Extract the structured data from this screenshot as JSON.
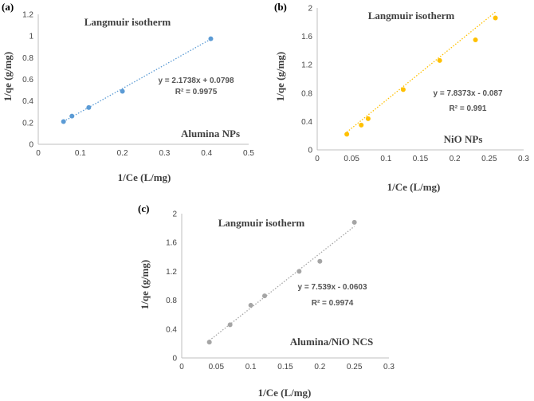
{
  "chart_data": [
    {
      "type": "scatter",
      "panel_label": "(a)",
      "title": "Langmuir isotherm",
      "annotation": "Alumina NPs",
      "xlabel": "1/Ce (L/mg)",
      "ylabel": "1/qe  (g/mg)",
      "xlim": [
        0,
        0.5
      ],
      "ylim": [
        0,
        1.2
      ],
      "xticks": [
        "0",
        "0.1",
        "0.2",
        "0.3",
        "0.4",
        "0.5"
      ],
      "yticks": [
        "0",
        "0.2",
        "0.4",
        "0.6",
        "0.8",
        "1",
        "1.2"
      ],
      "grid": false,
      "color": "#5b9bd5",
      "points": [
        {
          "x": 0.06,
          "y": 0.21
        },
        {
          "x": 0.08,
          "y": 0.26
        },
        {
          "x": 0.12,
          "y": 0.34
        },
        {
          "x": 0.2,
          "y": 0.49
        },
        {
          "x": 0.41,
          "y": 0.975
        }
      ],
      "trendline": {
        "slope": 2.1738,
        "intercept": 0.0798,
        "x_range": [
          0.06,
          0.41
        ],
        "style": "dotted"
      },
      "equation": "y = 2.1738x + 0.0798",
      "r2": "R² = 0.9975"
    },
    {
      "type": "scatter",
      "panel_label": "(b)",
      "title": "Langmuir isotherm",
      "annotation": "NiO NPs",
      "xlabel": "1/Ce (L/mg)",
      "ylabel": "1/qe  (g/mg)",
      "xlim": [
        0,
        0.3
      ],
      "ylim": [
        0,
        2
      ],
      "xticks": [
        "0",
        "0.05",
        "0.1",
        "0.15",
        "0.2",
        "0.25",
        "0.3"
      ],
      "yticks": [
        "0",
        "0.4",
        "0.8",
        "1.2",
        "1.6",
        "2"
      ],
      "grid": false,
      "color": "#ffc000",
      "points": [
        {
          "x": 0.043,
          "y": 0.22
        },
        {
          "x": 0.064,
          "y": 0.35
        },
        {
          "x": 0.074,
          "y": 0.44
        },
        {
          "x": 0.125,
          "y": 0.85
        },
        {
          "x": 0.178,
          "y": 1.26
        },
        {
          "x": 0.23,
          "y": 1.55
        },
        {
          "x": 0.259,
          "y": 1.86
        }
      ],
      "trendline": {
        "slope": 7.8373,
        "intercept": -0.087,
        "x_range": [
          0.043,
          0.259
        ],
        "style": "dotted"
      },
      "equation": "y = 7.8373x - 0.087",
      "r2": "R² = 0.991"
    },
    {
      "type": "scatter",
      "panel_label": "(c)",
      "title": "Langmuir isotherm",
      "annotation": "Alumina/NiO NCS",
      "xlabel": "1/Ce (L/mg)",
      "ylabel": "1/qe  (g/mg)",
      "xlim": [
        0,
        0.3
      ],
      "ylim": [
        0,
        2
      ],
      "xticks": [
        "0",
        "0.05",
        "0.1",
        "0.15",
        "0.2",
        "0.25",
        "0.3"
      ],
      "yticks": [
        "0",
        "0.4",
        "0.8",
        "1.2",
        "1.6",
        "2"
      ],
      "grid": false,
      "color": "#a5a5a5",
      "points": [
        {
          "x": 0.04,
          "y": 0.22
        },
        {
          "x": 0.07,
          "y": 0.46
        },
        {
          "x": 0.1,
          "y": 0.73
        },
        {
          "x": 0.12,
          "y": 0.86
        },
        {
          "x": 0.17,
          "y": 1.2
        },
        {
          "x": 0.2,
          "y": 1.34
        },
        {
          "x": 0.25,
          "y": 1.88
        }
      ],
      "trendline": {
        "slope": 7.539,
        "intercept": -0.0603,
        "x_range": [
          0.04,
          0.25
        ],
        "style": "dotted"
      },
      "equation": "y = 7.539x - 0.0603",
      "r2": "R² = 0.9974"
    }
  ]
}
